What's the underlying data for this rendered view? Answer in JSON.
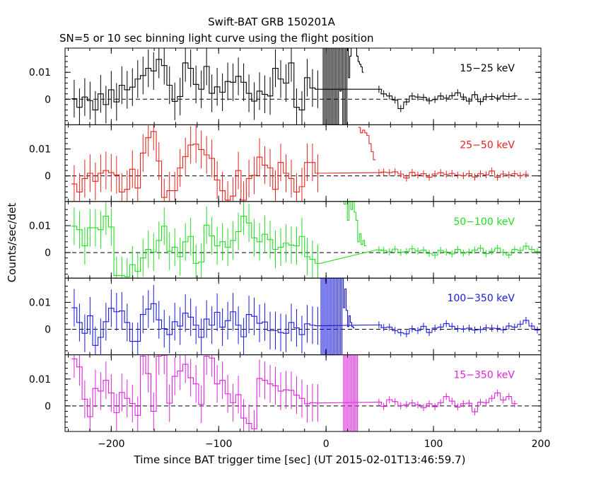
{
  "chart_data": {
    "type": "line",
    "title": "Swift-BAT GRB 150201A",
    "subtitle": "SN=5 or 10 sec binning light curve using the flight position",
    "xlabel": "Time since BAT trigger time [sec] (UT 2015-02-01T13:46:59.7)",
    "ylabel": "Counts/sec/det",
    "xlim": [
      -243,
      200
    ],
    "ylim": [
      -0.0095,
      0.019
    ],
    "x_ticks": [
      -200,
      -100,
      0,
      100,
      200
    ],
    "x_tick_labels": [
      "−200",
      "−100",
      "0",
      "100",
      "200"
    ],
    "y_ticks": [
      0,
      0.01
    ],
    "y_tick_labels": [
      "0",
      "0.01"
    ],
    "reference_line": 0,
    "legend": "per-panel label, top-right",
    "grid": false,
    "panels": [
      {
        "name": "15-25 keV",
        "label": "15−25 keV",
        "color": "#000000",
        "values": [
          0.0002,
          -0.003,
          0.0008,
          -0.0005,
          -0.004,
          0.002,
          -0.002,
          0.0035,
          -0.001,
          0.0052,
          0.0035,
          0.0045,
          0.0075,
          0.0088,
          0.0115,
          0.0105,
          0.0148,
          0.0125,
          0.0052,
          -0.0008,
          0.001,
          0.0135,
          0.0115,
          0.0055,
          0.0037,
          0.0122,
          0.0022,
          0.0046,
          0.0026,
          0.0066,
          0.0063,
          0.0085,
          0.0063,
          0.0022,
          -0.0007,
          0.003,
          0.0018,
          0.0012,
          0.0115,
          0.0075,
          0.006,
          0.0135,
          -0.003,
          -0.004,
          0.008,
          0.0042,
          0.0037,
          0.0037,
          0.002,
          0.0012,
          -0.0003,
          -0.0035,
          -0.001,
          0.0012,
          0.0008,
          0.0007,
          -0.0006,
          -0.0001,
          0.0012,
          0.0004,
          0.0013,
          0.0024,
          0.0008,
          -0.0007,
          0.0017,
          -0.0009,
          0.0009,
          0.001,
          0.0004,
          0.0012,
          0.001,
          0.0012
        ],
        "burst_values": [
          0.019,
          -0.0095,
          0.019,
          -0.0095,
          0.019,
          -0.0095,
          0.019,
          -0.0095,
          0.019,
          -0.0095,
          0.019,
          -0.0095,
          0.019,
          0.003,
          0.019,
          -0.0095,
          0.019,
          -0.0095,
          0.019,
          0.008,
          0.016,
          0.019,
          0.019,
          0.019,
          0.019,
          0.016,
          0.014,
          0.013,
          0.012,
          0.01
        ]
      },
      {
        "name": "25-50 keV",
        "label": "25−50 keV",
        "color": "#e8211b",
        "values": [
          -0.003,
          -0.006,
          -0.001,
          0.001,
          -0.002,
          0.001,
          0.002,
          0.0012,
          0.0004,
          -0.006,
          -0.005,
          0.0025,
          -0.0045,
          0.0085,
          0.0142,
          0.0165,
          0.0055,
          -0.008,
          -0.0055,
          -0.0055,
          0.003,
          0.0072,
          0.0115,
          0.0118,
          0.0098,
          0.0078,
          0.0065,
          -0.0015,
          -0.0055,
          -0.009,
          -0.0075,
          0.002,
          -0.009,
          -0.001,
          0.0002,
          0.007,
          0.004,
          0.003,
          -0.005,
          0.005,
          0.001,
          -0.001,
          -0.006,
          -0.004,
          0.005,
          0.005,
          0.001,
          0.0012,
          0.0014,
          0.0012,
          0.0015,
          0.0007,
          -0.0008,
          0.0013,
          0.0003,
          0.0008,
          -0.0005,
          0.0007,
          0.0012,
          0.0006,
          0.0009,
          0.0003,
          0.0001,
          0.0008,
          -0.0004,
          0.0008,
          0.0004,
          0.0018,
          -0.0005,
          0.0007,
          0.0004,
          0.0008,
          0.0001,
          0.0006
        ],
        "burst_values": [
          0.018,
          0.016,
          0.017,
          0.016,
          0.015,
          0.012,
          0.009,
          0.006
        ]
      },
      {
        "name": "50-100 keV",
        "label": "50−100 keV",
        "color": "#22dd22",
        "values": [
          0.0098,
          0.0085,
          0.0025,
          0.0092,
          0.0092,
          0.0085,
          0.0135,
          0.0095,
          -0.0085,
          -0.0085,
          -0.009,
          -0.0045,
          -0.007,
          -0.002,
          0.0012,
          0.0002,
          0.0045,
          0.0098,
          0.0005,
          0.002,
          -0.0015,
          0.004,
          0.006,
          -0.004,
          -0.0035,
          0.0102,
          0.0062,
          0.0025,
          0.004,
          0.002,
          0.0045,
          0.0078,
          0.0135,
          0.011,
          0.0055,
          0.004,
          0.0068,
          0.0048,
          0.0012,
          0.002,
          0.0035,
          0.0028,
          0.0025,
          0.006,
          -0.0015,
          -0.0025,
          -0.004,
          0.001,
          0.0008,
          0.0003,
          0.0013,
          0.0001,
          0.0004,
          0.0014,
          0.0006,
          0.0009,
          -0.0003,
          -0.001,
          0.0008,
          0.0002,
          -0.0005,
          0.0012,
          -0.0002,
          0.0002,
          0.0009,
          0.0016,
          -0.0004,
          0.0005,
          0.0016,
          0.0001,
          -0.0009,
          0.0012,
          0.0008,
          0.0024,
          0.0012,
          0.0004
        ],
        "burst_values": [
          0.019,
          0.018,
          0.019,
          0.012,
          0.019,
          0.016,
          0.019,
          0.015,
          0.012,
          0.004,
          0.007,
          0.003,
          0.0045,
          0.0025
        ]
      },
      {
        "name": "100-350 keV",
        "label": "100−350 keV",
        "color": "#1818e0",
        "values": [
          0.008,
          0.0025,
          -0.0015,
          0.005,
          -0.006,
          -0.003,
          0.0028,
          0.0078,
          0.0065,
          0.0068,
          0.0025,
          -0.0045,
          -0.0045,
          0.0055,
          0.0075,
          0.0095,
          0.0035,
          0.0002,
          -0.002,
          0.0028,
          0.0012,
          0.006,
          0.0045,
          0.0015,
          -0.003,
          0.0038,
          0.0015,
          0.0063,
          0.0008,
          0.0032,
          0.0065,
          0.0015,
          -0.0028,
          0.0055,
          0.0048,
          0.0022,
          0.0027,
          -0.0005,
          -0.0005,
          -0.0012,
          -0.0015,
          0.0025,
          0.0005,
          -0.002,
          0.002,
          0.0015,
          0.0013,
          0.0016,
          0.0006,
          0.0008,
          -0.0005,
          -0.0013,
          -0.0017,
          0.0002,
          -0.0005,
          0.0011,
          -0.0012,
          0.0004,
          0.0008,
          0.0021,
          0.0011,
          0.0002,
          0.0001,
          0.0004,
          -0.0003,
          -0.0001,
          0.0005,
          0.0004,
          0.0003,
          -0.0002,
          0.0012,
          0.0008,
          0.0019,
          0.0033,
          0.0012,
          -0.0003
        ],
        "burst_values": [
          0.019,
          -0.0095,
          0.019,
          -0.0095,
          0.019,
          -0.0095,
          0.019,
          -0.0095,
          0.019,
          -0.0095,
          0.019,
          -0.0095,
          0.019,
          -0.0095,
          0.019,
          -0.0095,
          0.019,
          0.008,
          0.015,
          0.007,
          0.001,
          0.005,
          0.0025,
          0.001,
          0.0005
        ]
      },
      {
        "name": "15-350 keV",
        "label": "15−350 keV",
        "color": "#dd22dd",
        "values": [
          0.0175,
          0.0145,
          0.0025,
          -0.004,
          0.0065,
          0.0055,
          0.0095,
          0.0048,
          -0.0025,
          0.005,
          0.0028,
          0.0009,
          -0.0035,
          0.0185,
          0.012,
          -0.002,
          0.0185,
          0.0188,
          0.001,
          0.011,
          0.013,
          0.0155,
          0.0105,
          0.0082,
          0.0006,
          0.0185,
          0.0178,
          0.0082,
          0.0095,
          0.0045,
          0.0012,
          0.0042,
          -0.0045,
          -0.0065,
          -0.0085,
          0.0102,
          0.0095,
          0.0082,
          0.0075,
          0.0055,
          0.006,
          0.0058,
          0.004,
          0.0028,
          0.0008,
          0.0012,
          0.0011,
          0.0014,
          -0.0002,
          0.0023,
          0.0016,
          0.0001,
          0.0005,
          0.0011,
          0.0004,
          -0.0006,
          0.0008,
          -0.0003,
          0.0012,
          0.0035,
          0.0018,
          -0.0004,
          0.0008,
          0.001,
          -0.0022,
          0.0014,
          0.0012,
          0.0028,
          0.0048,
          0.0022,
          0.0035,
          0.0008
        ],
        "burst_values": [
          0.019,
          -0.0095,
          0.019,
          -0.0095,
          0.019,
          -0.0095,
          0.019,
          -0.0095,
          0.019,
          -0.0095,
          0.019,
          -0.0095
        ]
      }
    ]
  }
}
